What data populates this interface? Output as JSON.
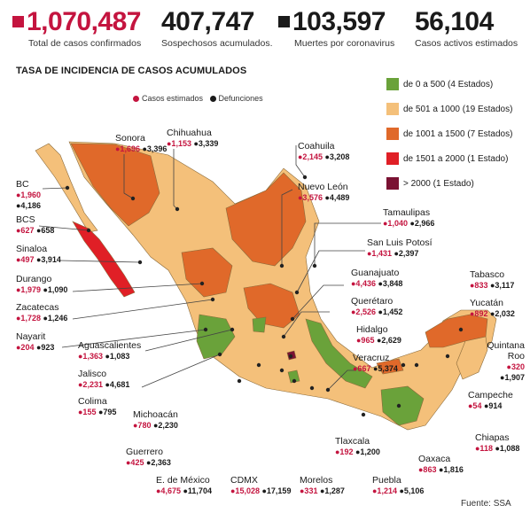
{
  "stats": [
    {
      "value": "1,070,487",
      "label": "Total de casos confirmados",
      "marker": "#c4143f",
      "numColor": "#c4143f"
    },
    {
      "value": "407,747",
      "label": "Sospechosos acumulados.",
      "marker": null,
      "numColor": "#1a1a1a"
    },
    {
      "value": "103,597",
      "label": "Muertes por coronavirus",
      "marker": "#1a1a1a",
      "numColor": "#1a1a1a"
    },
    {
      "value": "56,104",
      "label": "Casos activos estimados",
      "marker": null,
      "numColor": "#1a1a1a"
    }
  ],
  "title": "TASA DE INCIDENCIA DE CASOS ACUMULADOS",
  "dot_legend": {
    "cases": "Casos estimados",
    "deaths": "Defunciones",
    "cases_color": "#c4143f",
    "deaths_color": "#1a1a1a"
  },
  "source": "Fuente: SSA",
  "chart_data": {
    "type": "choropleth map",
    "title": "TASA DE INCIDENCIA DE CASOS ACUMULADOS",
    "legend": [
      {
        "label": "de 0 a 500 (4 Estados)",
        "color": "#6aa23a"
      },
      {
        "label": "de 501 a 1000 (19 Estados)",
        "color": "#f4c07a"
      },
      {
        "label": "de 1001 a 1500 (7 Estados)",
        "color": "#e0692a"
      },
      {
        "label": "de 1501 a 2000 (1 Estado)",
        "color": "#e01f26"
      },
      {
        "label": "> 2000 (1 Estado)",
        "color": "#7a1233"
      }
    ],
    "states": [
      {
        "name": "Sonora",
        "cases": "1,696",
        "deaths": "3,396"
      },
      {
        "name": "Chihuahua",
        "cases": "1,153",
        "deaths": "3,339"
      },
      {
        "name": "Coahuila",
        "cases": "2,145",
        "deaths": "3,208"
      },
      {
        "name": "BC",
        "cases": "1,960",
        "deaths": "4,186"
      },
      {
        "name": "Nuevo León",
        "cases": "3,576",
        "deaths": "4,489"
      },
      {
        "name": "BCS",
        "cases": "627",
        "deaths": "658"
      },
      {
        "name": "Tamaulipas",
        "cases": "1,040",
        "deaths": "2,966"
      },
      {
        "name": "Sinaloa",
        "cases": "497",
        "deaths": "3,914"
      },
      {
        "name": "San Luis Potosí",
        "cases": "1,431",
        "deaths": "2,397"
      },
      {
        "name": "Durango",
        "cases": "1,979",
        "deaths": "1,090"
      },
      {
        "name": "Guanajuato",
        "cases": "4,436",
        "deaths": "3,848"
      },
      {
        "name": "Tabasco",
        "cases": "833",
        "deaths": "3,117"
      },
      {
        "name": "Zacatecas",
        "cases": "1,728",
        "deaths": "1,246"
      },
      {
        "name": "Querétaro",
        "cases": "2,526",
        "deaths": "1,452"
      },
      {
        "name": "Yucatán",
        "cases": "892",
        "deaths": "2,032"
      },
      {
        "name": "Nayarit",
        "cases": "204",
        "deaths": "923"
      },
      {
        "name": "Hidalgo",
        "cases": "965",
        "deaths": "2,629"
      },
      {
        "name": "Aguascalientes",
        "cases": "1,363",
        "deaths": "1,083"
      },
      {
        "name": "Quintana Roo",
        "cases": "320",
        "deaths": "1,907"
      },
      {
        "name": "Veracruz",
        "cases": "667",
        "deaths": "5,374"
      },
      {
        "name": "Jalisco",
        "cases": "2,231",
        "deaths": "4,681"
      },
      {
        "name": "Campeche",
        "cases": "54",
        "deaths": "914"
      },
      {
        "name": "Colima",
        "cases": "155",
        "deaths": "795"
      },
      {
        "name": "Michoacán",
        "cases": "780",
        "deaths": "2,230"
      },
      {
        "name": "Guerrero",
        "cases": "425",
        "deaths": "2,363"
      },
      {
        "name": "Tlaxcala",
        "cases": "192",
        "deaths": "1,200"
      },
      {
        "name": "Oaxaca",
        "cases": "863",
        "deaths": "1,816"
      },
      {
        "name": "Chiapas",
        "cases": "118",
        "deaths": "1,088"
      },
      {
        "name": "E. de México",
        "cases": "4,675",
        "deaths": "11,704"
      },
      {
        "name": "CDMX",
        "cases": "15,028",
        "deaths": "17,159"
      },
      {
        "name": "Morelos",
        "cases": "331",
        "deaths": "1,287"
      },
      {
        "name": "Puebla",
        "cases": "1,214",
        "deaths": "5,106"
      }
    ]
  }
}
